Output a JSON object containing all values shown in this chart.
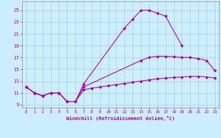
{
  "xlabel": "Windchill (Refroidissement éolien,°C)",
  "xlim": [
    -0.5,
    23.5
  ],
  "ylim": [
    8.5,
    26.5
  ],
  "xticks": [
    0,
    1,
    2,
    3,
    4,
    5,
    6,
    7,
    8,
    9,
    10,
    11,
    12,
    13,
    14,
    15,
    16,
    17,
    18,
    19,
    20,
    21,
    22,
    23
  ],
  "yticks": [
    9,
    11,
    13,
    15,
    17,
    19,
    21,
    23,
    25
  ],
  "bg_color": "#cceeff",
  "grid_color": "#aacccc",
  "line_color": "#aa00aa",
  "c1x": [
    0,
    1,
    2,
    3,
    4,
    5,
    6,
    7,
    12,
    13,
    14,
    15,
    16,
    17,
    19
  ],
  "c1y": [
    12.0,
    11.0,
    10.5,
    11.0,
    11.0,
    9.5,
    9.5,
    12.5,
    22.0,
    23.5,
    25.0,
    25.0,
    24.5,
    24.0,
    19.0
  ],
  "c2x": [
    0,
    1,
    2,
    3,
    4,
    5,
    6,
    7,
    14,
    15,
    16,
    17,
    18,
    19,
    20,
    21,
    22,
    23
  ],
  "c2y": [
    12.0,
    11.0,
    10.5,
    11.0,
    11.0,
    9.5,
    9.5,
    12.0,
    16.5,
    17.0,
    17.2,
    17.2,
    17.1,
    17.0,
    17.0,
    16.8,
    16.5,
    14.8
  ],
  "c3x": [
    0,
    1,
    2,
    3,
    4,
    5,
    6,
    7,
    8,
    9,
    10,
    11,
    12,
    13,
    14,
    15,
    16,
    17,
    18,
    19,
    20,
    21,
    22,
    23
  ],
  "c3y": [
    12.0,
    11.0,
    10.5,
    11.0,
    11.0,
    9.5,
    9.5,
    11.5,
    11.8,
    12.0,
    12.2,
    12.4,
    12.6,
    12.8,
    13.0,
    13.2,
    13.4,
    13.5,
    13.6,
    13.7,
    13.8,
    13.8,
    13.7,
    13.5
  ]
}
